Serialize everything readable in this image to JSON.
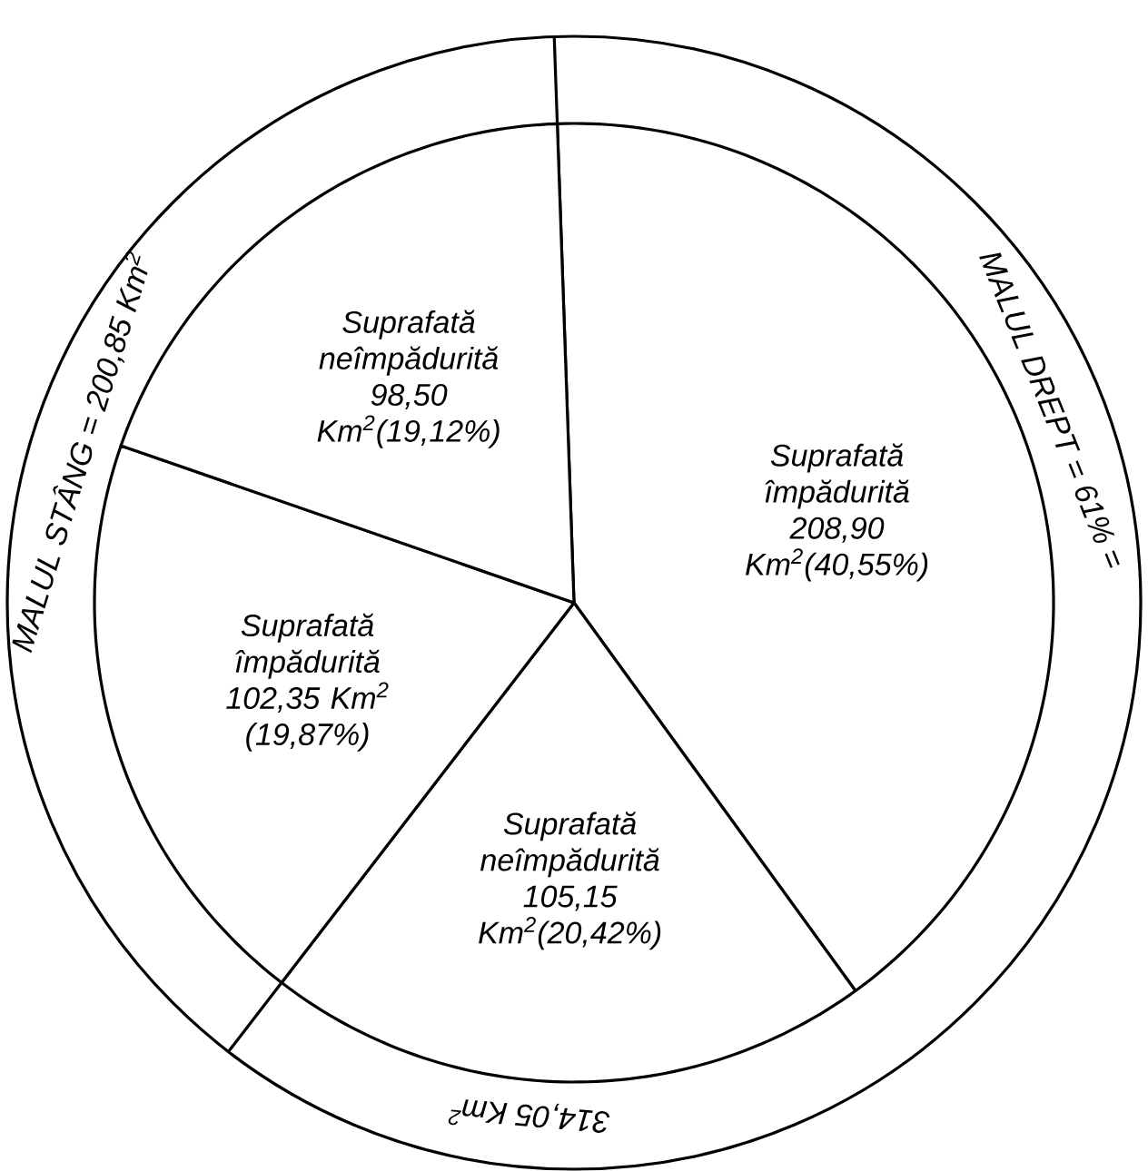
{
  "chart_data": {
    "type": "pie",
    "categories": [
      "Suprafată împădurită",
      "Suprafată neîmpădurită",
      "Suprafată împădurită",
      "Suprafată neîmpădurită"
    ],
    "values": [
      208.9,
      105.15,
      102.35,
      98.5
    ],
    "value_labels": [
      "208,90 Km$^{2}$(40,55%)",
      "105,15 Km$^{2}$(20,42%)",
      "102,35 Km$^{2}$ (19,87%)",
      "98,50 Km$^{2}$(19,12%)"
    ],
    "colors": [
      "#ffffff",
      "#ffffff",
      "#ffffff",
      "#ffffff"
    ],
    "annotations": [
      "MALUL DREPT = 61% =",
      "314,05 Km$^{2}$",
      "MALUL STÂNG = 200,85 Km$^{2}$"
    ]
  }
}
